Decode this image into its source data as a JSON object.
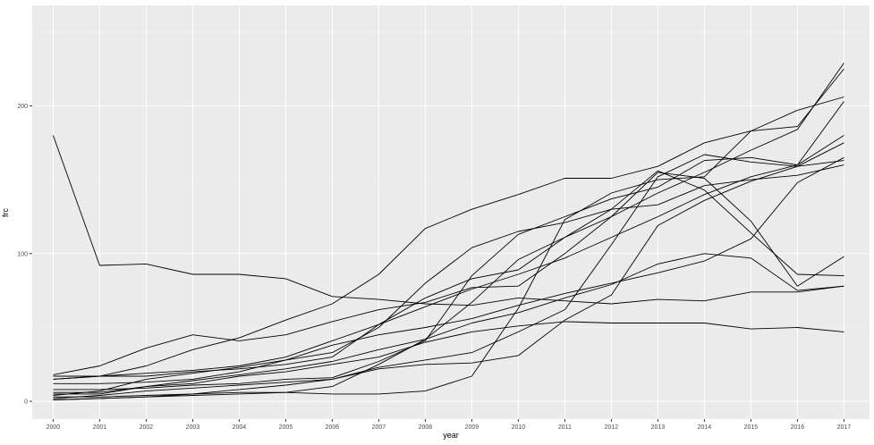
{
  "chart_data": {
    "type": "line",
    "title": "",
    "xlabel": "year",
    "ylabel": "frc",
    "x": [
      2000,
      2001,
      2002,
      2003,
      2004,
      2005,
      2006,
      2007,
      2008,
      2009,
      2010,
      2011,
      2012,
      2013,
      2014,
      2015,
      2016,
      2017
    ],
    "x_tick_labels": [
      "2000",
      "2001",
      "2002",
      "2003",
      "2004",
      "2005",
      "2006",
      "2007",
      "2008",
      "2009",
      "2010",
      "2011",
      "2012",
      "2013",
      "2014",
      "2015",
      "2016",
      "2017"
    ],
    "y_ticks": [
      0,
      100,
      200
    ],
    "y_tick_labels": [
      "0",
      "100",
      "200"
    ],
    "xlim": [
      1999.55,
      2017.55
    ],
    "ylim": [
      -12,
      268
    ],
    "grid": true,
    "legend": "none",
    "colors": {
      "panel": "#ebebeb",
      "grid_major": "#ffffff",
      "grid_minor": "#f5f5f5",
      "line": "#000000",
      "axis_text": "#4d4d4d",
      "axis_title": "#000000"
    },
    "series": [
      {
        "values": [
          180,
          92,
          93,
          86,
          86,
          83,
          71,
          69,
          66,
          65,
          70,
          68,
          66,
          69,
          68,
          74,
          74,
          78
        ]
      },
      {
        "values": [
          18,
          24,
          36,
          45,
          41,
          45,
          54,
          62,
          67,
          77,
          78,
          100,
          125,
          155,
          151,
          122,
          78,
          98
        ]
      },
      {
        "values": [
          15,
          17,
          24,
          35,
          43,
          55,
          66,
          86,
          117,
          130,
          140,
          151,
          151,
          159,
          175,
          183,
          197,
          206
        ]
      },
      {
        "values": [
          17,
          17,
          17,
          20,
          22,
          25,
          30,
          52,
          70,
          83,
          89,
          111,
          125,
          141,
          155,
          170,
          184,
          229
        ]
      },
      {
        "values": [
          12,
          12,
          13,
          15,
          20,
          28,
          33,
          50,
          80,
          104,
          115,
          121,
          130,
          133,
          146,
          150,
          153,
          160
        ]
      },
      {
        "values": [
          2,
          4,
          7,
          9,
          11,
          13,
          15,
          23,
          28,
          33,
          47,
          62,
          106,
          152,
          167,
          162,
          159,
          163
        ]
      },
      {
        "values": [
          8,
          8,
          9,
          11,
          12,
          15,
          16,
          27,
          41,
          85,
          113,
          125,
          137,
          145,
          163,
          165,
          160,
          203
        ]
      },
      {
        "values": [
          1,
          2,
          3,
          4,
          5,
          6,
          10,
          25,
          42,
          67,
          96,
          111,
          130,
          156,
          143,
          114,
          86,
          85
        ]
      },
      {
        "values": [
          6,
          6,
          10,
          14,
          18,
          22,
          27,
          35,
          42,
          53,
          60,
          70,
          79,
          93,
          100,
          97,
          75,
          78
        ]
      },
      {
        "values": [
          3,
          3,
          4,
          5,
          6,
          6,
          5,
          5,
          7,
          17,
          63,
          123,
          141,
          150,
          152,
          183,
          186,
          225
        ]
      },
      {
        "values": [
          1,
          2,
          3,
          5,
          8,
          11,
          15,
          22,
          25,
          26,
          31,
          55,
          72,
          119,
          136,
          149,
          159,
          175
        ]
      },
      {
        "values": [
          5,
          5,
          10,
          12,
          17,
          20,
          25,
          30,
          40,
          47,
          51,
          54,
          53,
          53,
          53,
          49,
          50,
          47
        ]
      },
      {
        "values": [
          15,
          17,
          19,
          21,
          24,
          30,
          41,
          52,
          64,
          76,
          86,
          97,
          111,
          125,
          140,
          152,
          160,
          180
        ]
      },
      {
        "values": [
          4,
          7,
          15,
          19,
          23,
          28,
          38,
          45,
          50,
          56,
          65,
          73,
          80,
          87,
          95,
          110,
          148,
          165
        ]
      }
    ]
  }
}
